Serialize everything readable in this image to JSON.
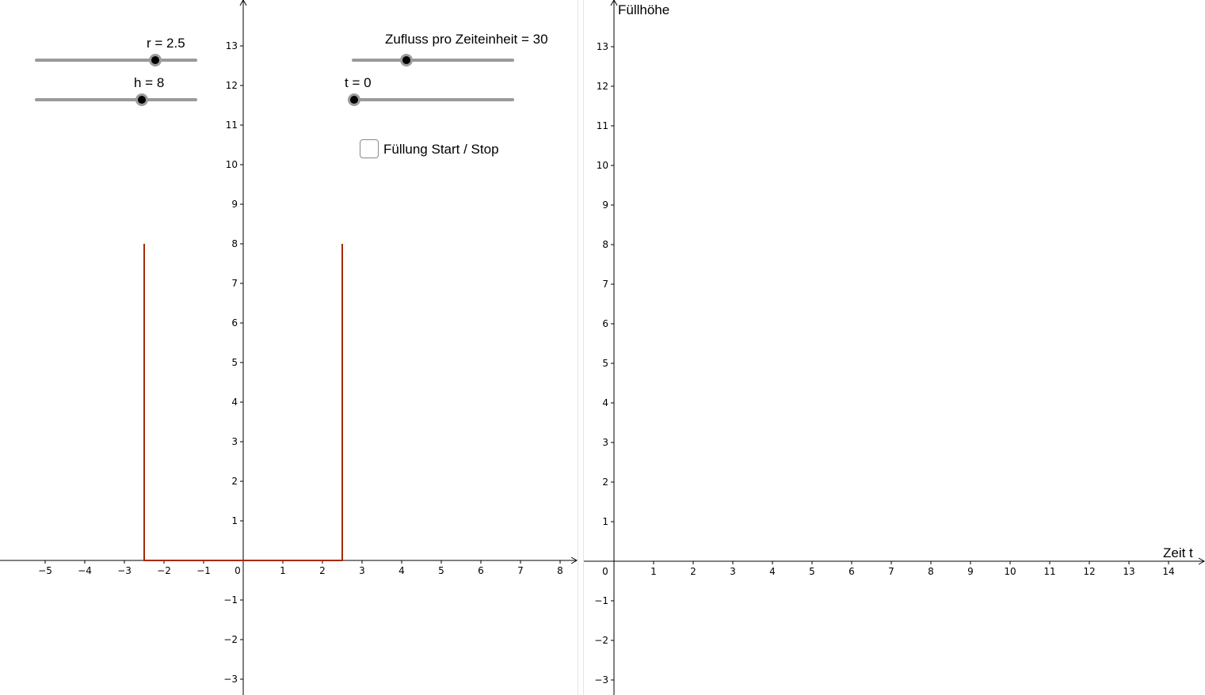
{
  "left_view": {
    "x_ticks": [
      "−5",
      "−4",
      "−3",
      "−2",
      "−1",
      "0",
      "1",
      "2",
      "3",
      "4",
      "5",
      "6",
      "7",
      "8"
    ],
    "y_ticks": [
      "13",
      "12",
      "11",
      "10",
      "9",
      "8",
      "7",
      "6",
      "5",
      "4",
      "3",
      "2",
      "1",
      "−1",
      "−2",
      "−3"
    ],
    "curve_color": "#a52a00",
    "sliders": [
      {
        "id": "r",
        "label": "r = 2.5",
        "value": 2.5
      },
      {
        "id": "h",
        "label": "h = 8",
        "value": 8
      },
      {
        "id": "zufluss",
        "label": "Zufluss pro Zeiteinheit = 30",
        "value": 30
      },
      {
        "id": "t",
        "label": "t = 0",
        "value": 0
      }
    ],
    "checkbox": {
      "label": "Füllung Start / Stop",
      "checked": false
    }
  },
  "right_view": {
    "y_axis_title": "Füllhöhe",
    "x_axis_title": "Zeit t",
    "x_ticks": [
      "0",
      "1",
      "2",
      "3",
      "4",
      "5",
      "6",
      "7",
      "8",
      "9",
      "10",
      "11",
      "12",
      "13",
      "14"
    ],
    "y_ticks": [
      "13",
      "12",
      "11",
      "10",
      "9",
      "8",
      "7",
      "6",
      "5",
      "4",
      "3",
      "2",
      "1",
      "−1",
      "−2",
      "−3"
    ]
  },
  "colors": {
    "slider_track": "#9a9a9a",
    "slider_knob": "#000000",
    "axis": "#000000"
  }
}
